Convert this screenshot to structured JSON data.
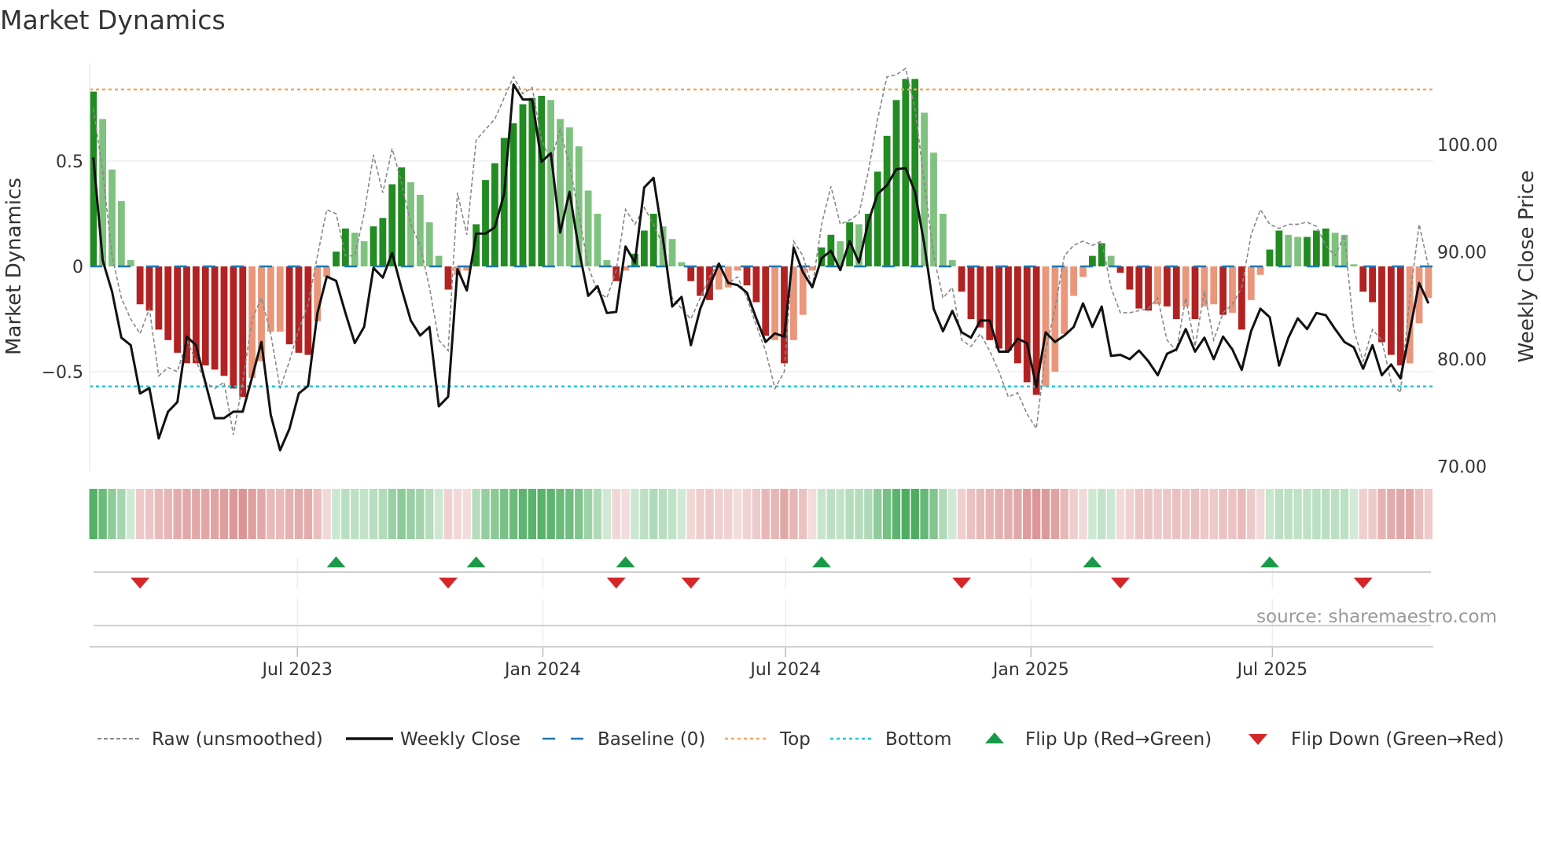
{
  "title": "Market Dynamics",
  "source": "source: sharemaestro.com",
  "colors": {
    "strong_green": "#228b22",
    "weak_green": "#7fc27f",
    "strong_red": "#b22222",
    "weak_red": "#e9967a",
    "close": "#111111",
    "raw": "#888888",
    "baseline": "#1f77b4",
    "top": "#f0a860",
    "bottom": "#22c5d8",
    "flip_up": "#1a9a48",
    "flip_down": "#d62728"
  },
  "chart_data": {
    "type": "bar",
    "x_start": "2023-01-29",
    "x_step_days": 7,
    "left_axis": {
      "label": "Market Dynamics",
      "ylim": [
        -1.0,
        1.0
      ],
      "ticks": [
        0.5,
        0,
        -0.5
      ],
      "tick_labels": [
        "0.5",
        "0",
        "−0.5"
      ]
    },
    "right_axis": {
      "label": "Weekly Close Price",
      "ylim": [
        69.5,
        111.5
      ],
      "ticks": [
        100,
        90,
        80,
        70
      ],
      "tick_labels": [
        "100.00",
        "90.00",
        "80.00",
        "70.00"
      ]
    },
    "x_ticks": [
      {
        "date": "2023-07-01",
        "label": "Jul 2023"
      },
      {
        "date": "2024-01-01",
        "label": "Jan 2024"
      },
      {
        "date": "2024-07-01",
        "label": "Jul 2024"
      },
      {
        "date": "2025-01-01",
        "label": "Jan 2025"
      },
      {
        "date": "2025-07-01",
        "label": "Jul 2025"
      }
    ],
    "grid": true,
    "top_level": 0.84,
    "bottom_level": -0.57,
    "baseline": 0,
    "momentum": [
      0.83,
      0.7,
      0.46,
      0.31,
      0.03,
      -0.18,
      -0.21,
      -0.3,
      -0.35,
      -0.41,
      -0.46,
      -0.46,
      -0.47,
      -0.49,
      -0.52,
      -0.58,
      -0.62,
      -0.53,
      -0.45,
      -0.31,
      -0.31,
      -0.37,
      -0.41,
      -0.42,
      -0.26,
      -0.05,
      0.07,
      0.18,
      0.16,
      0.12,
      0.19,
      0.23,
      0.39,
      0.47,
      0.4,
      0.34,
      0.21,
      0.05,
      -0.11,
      -0.04,
      -0.02,
      0.2,
      0.41,
      0.49,
      0.61,
      0.68,
      0.77,
      0.8,
      0.81,
      0.79,
      0.7,
      0.66,
      0.57,
      0.36,
      0.25,
      0.03,
      -0.07,
      -0.02,
      0.06,
      0.17,
      0.25,
      0.19,
      0.13,
      0.02,
      -0.07,
      -0.14,
      -0.16,
      -0.11,
      -0.1,
      -0.02,
      -0.09,
      -0.17,
      -0.33,
      -0.35,
      -0.46,
      -0.35,
      -0.23,
      -0.02,
      0.09,
      0.15,
      0.12,
      0.21,
      0.2,
      0.25,
      0.45,
      0.62,
      0.79,
      0.89,
      0.89,
      0.73,
      0.54,
      0.25,
      0.03,
      -0.12,
      -0.25,
      -0.29,
      -0.35,
      -0.39,
      -0.4,
      -0.46,
      -0.55,
      -0.61,
      -0.57,
      -0.5,
      -0.32,
      -0.14,
      -0.05,
      0.05,
      0.11,
      0.05,
      -0.03,
      -0.11,
      -0.2,
      -0.21,
      -0.18,
      -0.19,
      -0.25,
      -0.19,
      -0.25,
      -0.19,
      -0.18,
      -0.23,
      -0.22,
      -0.3,
      -0.16,
      -0.04,
      0.08,
      0.17,
      0.15,
      0.14,
      0.14,
      0.17,
      0.18,
      0.16,
      0.15,
      0.01,
      -0.12,
      -0.17,
      -0.36,
      -0.42,
      -0.47,
      -0.46,
      -0.27,
      -0.15
    ],
    "strong": [
      1,
      0,
      0,
      0,
      0,
      1,
      1,
      1,
      1,
      1,
      1,
      1,
      1,
      1,
      1,
      1,
      1,
      0,
      0,
      0,
      0,
      1,
      1,
      1,
      0,
      0,
      1,
      1,
      0,
      0,
      1,
      1,
      1,
      1,
      0,
      0,
      0,
      0,
      1,
      0,
      0,
      1,
      1,
      1,
      1,
      1,
      1,
      1,
      1,
      0,
      0,
      0,
      0,
      0,
      0,
      0,
      1,
      0,
      1,
      1,
      1,
      0,
      0,
      0,
      1,
      1,
      1,
      0,
      0,
      0,
      1,
      1,
      1,
      0,
      1,
      0,
      0,
      0,
      1,
      1,
      0,
      1,
      0,
      1,
      1,
      1,
      1,
      1,
      1,
      0,
      0,
      0,
      0,
      1,
      1,
      1,
      1,
      1,
      1,
      1,
      1,
      1,
      0,
      0,
      0,
      0,
      0,
      1,
      1,
      0,
      1,
      1,
      1,
      1,
      0,
      1,
      1,
      0,
      1,
      0,
      0,
      1,
      0,
      1,
      0,
      0,
      1,
      1,
      0,
      0,
      1,
      1,
      1,
      0,
      0,
      0,
      1,
      1,
      1,
      1,
      1,
      0,
      0,
      0
    ],
    "raw": [
      0.75,
      0.45,
      0.05,
      -0.15,
      -0.25,
      -0.32,
      -0.2,
      -0.52,
      -0.48,
      -0.5,
      -0.35,
      -0.45,
      -0.55,
      -0.58,
      -0.55,
      -0.8,
      -0.55,
      -0.25,
      -0.15,
      -0.32,
      -0.58,
      -0.45,
      -0.3,
      -0.18,
      0.05,
      0.27,
      0.25,
      0.05,
      0.05,
      0.25,
      0.53,
      0.35,
      0.56,
      0.4,
      0.2,
      0.1,
      -0.1,
      -0.35,
      -0.4,
      0.35,
      0.15,
      0.6,
      0.65,
      0.7,
      0.8,
      0.9,
      0.82,
      0.85,
      0.6,
      0.5,
      0.65,
      0.48,
      0.25,
      0.0,
      -0.12,
      -0.15,
      -0.02,
      0.27,
      0.2,
      0.28,
      0.2,
      0.1,
      -0.15,
      -0.2,
      -0.25,
      -0.15,
      -0.05,
      0.02,
      -0.08,
      -0.05,
      -0.15,
      -0.28,
      -0.4,
      -0.58,
      -0.5,
      0.12,
      0.05,
      -0.1,
      0.2,
      0.38,
      0.2,
      0.22,
      0.25,
      0.45,
      0.7,
      0.9,
      0.91,
      0.94,
      0.75,
      0.4,
      0.05,
      -0.15,
      -0.1,
      -0.35,
      -0.38,
      -0.32,
      -0.4,
      -0.5,
      -0.62,
      -0.6,
      -0.7,
      -0.77,
      -0.4,
      -0.2,
      0.05,
      0.1,
      0.12,
      0.1,
      0.12,
      -0.1,
      -0.22,
      -0.22,
      -0.21,
      -0.2,
      -0.15,
      -0.35,
      -0.4,
      -0.15,
      -0.38,
      -0.12,
      -0.35,
      -0.22,
      -0.18,
      -0.1,
      0.15,
      0.27,
      0.2,
      0.18,
      0.2,
      0.2,
      0.21,
      0.19,
      0.1,
      0.05,
      0.15,
      -0.3,
      -0.45,
      -0.3,
      -0.35,
      -0.55,
      -0.6,
      -0.15,
      0.2,
      0.0
    ],
    "close": [
      98.8,
      89.2,
      86.3,
      82.0,
      81.3,
      76.8,
      77.3,
      72.6,
      75.1,
      76.0,
      82.1,
      81.3,
      77.8,
      74.5,
      74.5,
      75.1,
      75.1,
      78.3,
      81.6,
      74.8,
      71.5,
      73.5,
      76.8,
      77.5,
      84.3,
      87.7,
      87.3,
      84.3,
      81.5,
      83.0,
      88.5,
      87.6,
      89.9,
      86.6,
      83.6,
      82.2,
      83.0,
      75.6,
      76.5,
      88.4,
      86.4,
      91.7,
      91.7,
      92.3,
      95.4,
      105.6,
      104.2,
      104.2,
      98.4,
      99.2,
      91.8,
      95.6,
      90.2,
      85.9,
      86.8,
      84.3,
      84.4,
      90.5,
      89.0,
      96.0,
      96.9,
      91.3,
      84.9,
      85.8,
      81.3,
      84.7,
      86.8,
      88.9,
      87.1,
      86.9,
      86.2,
      83.8,
      81.6,
      82.4,
      82.1,
      90.4,
      88.1,
      86.7,
      89.4,
      90.1,
      88.3,
      91.0,
      89.0,
      92.8,
      95.4,
      96.2,
      97.7,
      97.8,
      95.6,
      90.7,
      84.7,
      82.6,
      84.5,
      82.5,
      82.0,
      83.6,
      83.6,
      80.7,
      80.7,
      81.9,
      81.5,
      77.4,
      82.5,
      81.6,
      82.2,
      83.0,
      85.2,
      83.0,
      84.9,
      80.3,
      80.4,
      80.0,
      80.8,
      79.8,
      78.5,
      80.5,
      80.9,
      82.8,
      80.7,
      82.0,
      80.0,
      82.1,
      80.9,
      79.0,
      82.6,
      84.7,
      83.9,
      79.4,
      82.0,
      83.8,
      82.8,
      84.3,
      84.1,
      82.8,
      81.6,
      81.1,
      79.1,
      81.3,
      78.5,
      79.5,
      78.2,
      82.6,
      87.1,
      85.2
    ],
    "flip_up_weeks": [
      26,
      41,
      57,
      78,
      107,
      126
    ],
    "flip_down_weeks": [
      5,
      38,
      56,
      64,
      93,
      110,
      136
    ],
    "legend": {
      "position": "bottom",
      "items": [
        "Raw (unsmoothed)",
        "Weekly Close",
        "Baseline (0)",
        "Top",
        "Bottom",
        "Flip Up (Red→Green)",
        "Flip Down (Green→Red)"
      ]
    }
  }
}
